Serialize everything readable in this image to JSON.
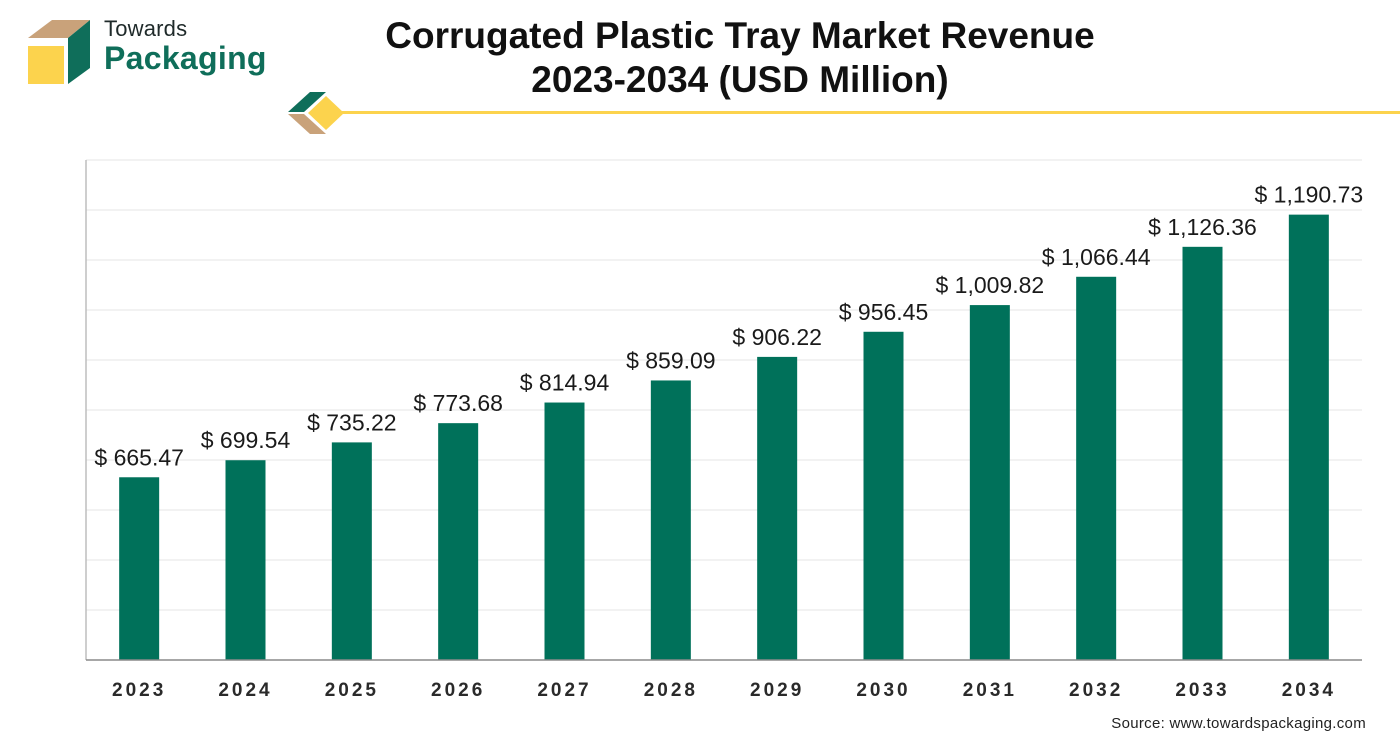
{
  "logo": {
    "line1": "Towards",
    "line2": "Packaging",
    "colors": {
      "green": "#0f6e5a",
      "tan": "#c9a27a",
      "yellow": "#fcd34d"
    }
  },
  "title_line1": "Corrugated Plastic Tray Market Revenue",
  "title_line2": "2023-2034 (USD Million)",
  "source": "Source: www.towardspackaging.com",
  "chart_data": {
    "type": "bar",
    "categories": [
      "2023",
      "2024",
      "2025",
      "2026",
      "2027",
      "2028",
      "2029",
      "2030",
      "2031",
      "2032",
      "2033",
      "2034"
    ],
    "values": [
      665.47,
      699.54,
      735.22,
      773.68,
      814.94,
      859.09,
      906.22,
      956.45,
      1009.82,
      1066.44,
      1126.36,
      1190.73
    ],
    "value_labels": [
      "$ 665.47",
      "$ 699.54",
      "$ 735.22",
      "$ 773.68",
      "$ 814.94",
      "$ 859.09",
      "$ 906.22",
      "$ 956.45",
      "$ 1,009.82",
      "$ 1,066.44",
      "$ 1,126.36",
      "$ 1,190.73"
    ],
    "title": "Corrugated Plastic Tray Market Revenue 2023-2034 (USD Million)",
    "xlabel": "",
    "ylabel": "",
    "ylim": [
      300,
      1300
    ],
    "grid": true,
    "bar_color": "#00715a"
  }
}
